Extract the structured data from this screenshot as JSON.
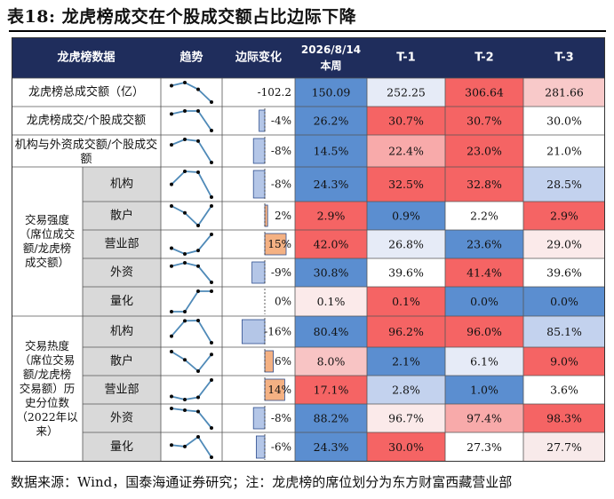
{
  "title": "表18: 龙虎榜成交在个股成交额占比边际下降",
  "source": "数据来源：Wind，国泰海通证券研究；注：龙虎榜的席位划分为东方财富西藏营业部",
  "header": {
    "col_data": "龙虎榜数据",
    "col_trend": "趋势",
    "col_change": "边际变化",
    "col_current_line1": "2026/8/14",
    "col_current_line2": "本周",
    "col_t1": "T-1",
    "col_t2": "T-2",
    "col_t3": "T-3"
  },
  "groups": {
    "strength_label": "交易强度\n（席位成交\n额/龙虎榜\n成交额）",
    "heat_label": "交易热度\n（席位交易\n额/龙虎榜\n交易额）历\n史分位数\n（2022年以\n来）"
  },
  "colors": {
    "header_bg": "#1f2d5c",
    "header_text": "#ffffff",
    "label_gray": "#d9d9d9",
    "spark_line": "#4f8ab8",
    "spark_dot": "#0a0a0a",
    "bar_neg": "#b4c6e7",
    "bar_pos": "#f4b183",
    "bar_edge": "#2f4f8f"
  },
  "rows": [
    {
      "label": "龙虎榜总成交额（亿）",
      "change_text": "-102.2",
      "change_pct": null,
      "values": [
        "150.09",
        "252.25",
        "306.64",
        "281.66"
      ],
      "fills": [
        "#5b8ed0",
        "#e6ebf7",
        "#f56464",
        "#f8c9c9"
      ],
      "trend": [
        150.09,
        252.25,
        306.64,
        281.66
      ]
    },
    {
      "label": "龙虎榜成交/个股成交额",
      "change_text": "-4%",
      "change_pct": -4,
      "values": [
        "26.2%",
        "30.7%",
        "30.7%",
        "30.0%"
      ],
      "fills": [
        "#5b8ed0",
        "#f56464",
        "#f56464",
        "#ffffff"
      ],
      "trend": [
        26.2,
        30.7,
        30.7,
        30.0
      ]
    },
    {
      "label": "机构与外资成交额/个股成交额",
      "change_text": "-8%",
      "change_pct": -8,
      "values": [
        "14.5%",
        "22.4%",
        "23.0%",
        "21.0%"
      ],
      "fills": [
        "#5b8ed0",
        "#f8aaaa",
        "#f56464",
        "#ffffff"
      ],
      "trend": [
        14.5,
        22.4,
        23.0,
        21.0
      ]
    },
    {
      "label": "机构",
      "change_text": "-8%",
      "change_pct": -8,
      "values": [
        "24.3%",
        "32.5%",
        "32.8%",
        "28.5%"
      ],
      "fills": [
        "#5b8ed0",
        "#f56464",
        "#f56464",
        "#c3d2ee"
      ],
      "trend": [
        24.3,
        32.5,
        32.8,
        28.5
      ]
    },
    {
      "label": "散户",
      "change_text": "2%",
      "change_pct": 2,
      "values": [
        "2.9%",
        "0.9%",
        "2.2%",
        "2.9%"
      ],
      "fills": [
        "#f56464",
        "#5b8ed0",
        "#ffffff",
        "#f56464"
      ],
      "trend": [
        2.9,
        0.9,
        2.2,
        2.9
      ]
    },
    {
      "label": "营业部",
      "change_text": "15%",
      "change_pct": 15,
      "values": [
        "42.0%",
        "26.8%",
        "23.6%",
        "29.0%"
      ],
      "fills": [
        "#f56464",
        "#e6ebf7",
        "#5b8ed0",
        "#fbeaea"
      ],
      "trend": [
        42.0,
        26.8,
        23.6,
        29.0
      ]
    },
    {
      "label": "外资",
      "change_text": "-9%",
      "change_pct": -9,
      "values": [
        "30.8%",
        "39.6%",
        "41.4%",
        "39.6%"
      ],
      "fills": [
        "#5b8ed0",
        "#ffffff",
        "#f56464",
        "#ffffff"
      ],
      "trend": [
        30.8,
        39.6,
        41.4,
        39.6
      ]
    },
    {
      "label": "量化",
      "change_text": "0%",
      "change_pct": 0,
      "values": [
        "0.1%",
        "0.1%",
        "0.0%",
        "0.0%"
      ],
      "fills": [
        "#fbeaea",
        "#f56464",
        "#5b8ed0",
        "#5b8ed0"
      ],
      "trend": [
        0.1,
        0.1,
        0.0,
        0.0
      ]
    },
    {
      "label": "机构",
      "change_text": "-16%",
      "change_pct": -16,
      "values": [
        "80.4%",
        "96.2%",
        "96.0%",
        "85.1%"
      ],
      "fills": [
        "#5b8ed0",
        "#f56464",
        "#f56464",
        "#c3d2ee"
      ],
      "trend": [
        80.4,
        96.2,
        96.0,
        85.1
      ]
    },
    {
      "label": "散户",
      "change_text": "6%",
      "change_pct": 6,
      "values": [
        "8.0%",
        "2.1%",
        "6.1%",
        "9.0%"
      ],
      "fills": [
        "#f8c4c4",
        "#5b8ed0",
        "#e6ebf7",
        "#f56464"
      ],
      "trend": [
        8.0,
        2.1,
        6.1,
        9.0
      ]
    },
    {
      "label": "营业部",
      "change_text": "14%",
      "change_pct": 14,
      "values": [
        "17.1%",
        "2.8%",
        "1.0%",
        "3.6%"
      ],
      "fills": [
        "#f56464",
        "#c3d2ee",
        "#5b8ed0",
        "#ffffff"
      ],
      "trend": [
        17.1,
        2.8,
        1.0,
        3.6
      ]
    },
    {
      "label": "外资",
      "change_text": "-8%",
      "change_pct": -8,
      "values": [
        "88.2%",
        "96.7%",
        "97.4%",
        "98.3%"
      ],
      "fills": [
        "#5b8ed0",
        "#fbeaea",
        "#f8aaaa",
        "#f56464"
      ],
      "trend": [
        88.2,
        96.7,
        97.4,
        98.3
      ]
    },
    {
      "label": "量化",
      "change_text": "-6%",
      "change_pct": -6,
      "values": [
        "24.3%",
        "30.0%",
        "27.3%",
        "27.7%"
      ],
      "fills": [
        "#5b8ed0",
        "#f56464",
        "#ffffff",
        "#f8eaea"
      ],
      "trend": [
        24.3,
        30.0,
        27.3,
        27.7
      ]
    }
  ]
}
